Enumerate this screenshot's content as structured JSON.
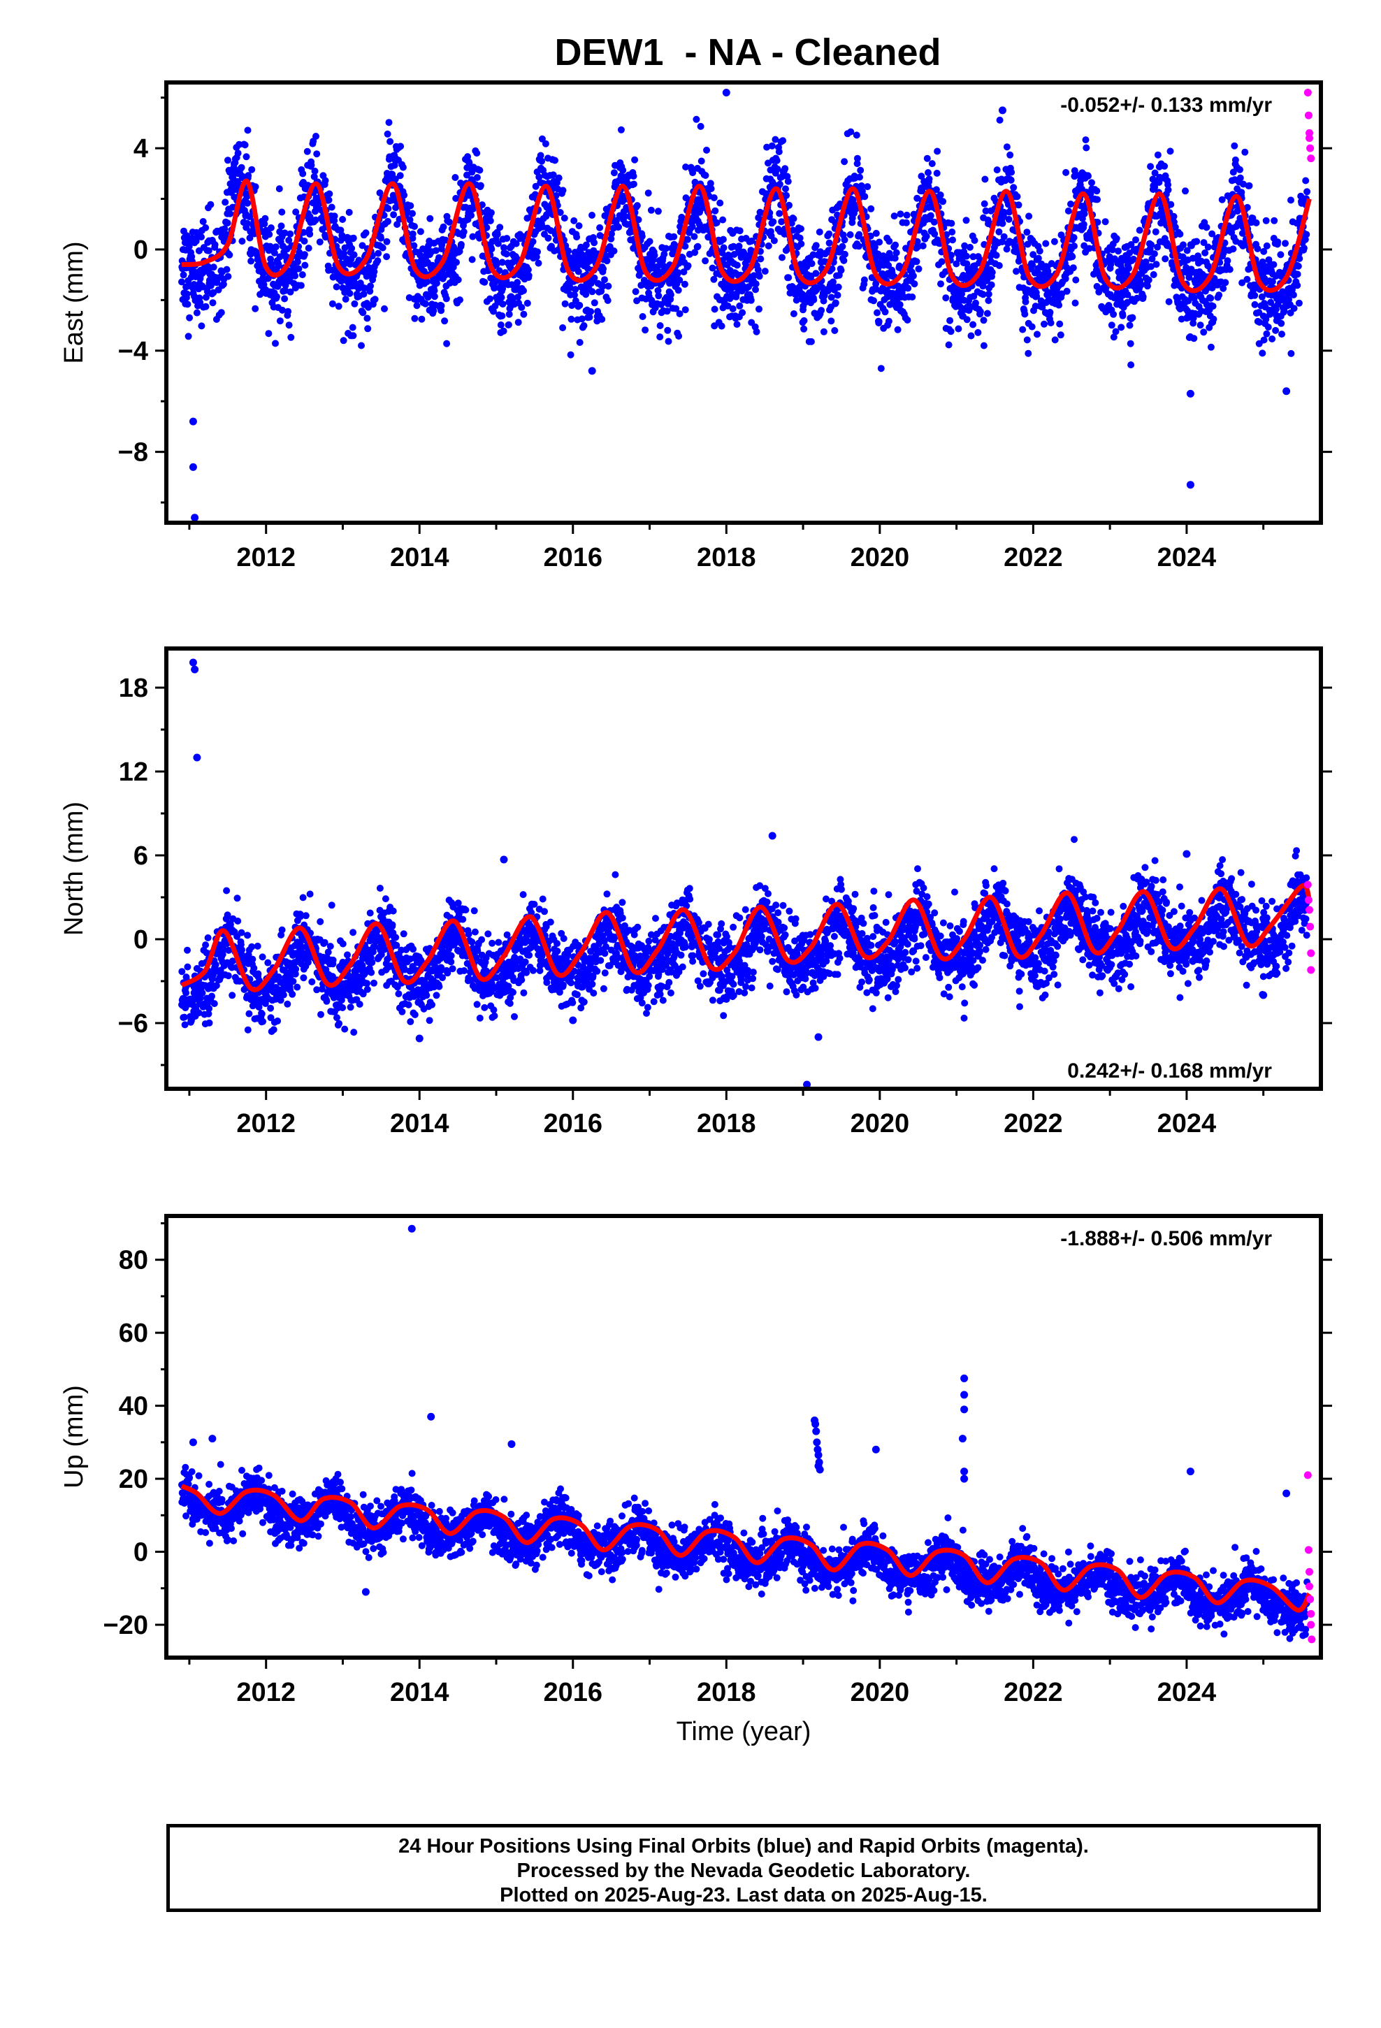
{
  "title": "DEW1  - NA - Cleaned",
  "footer": {
    "line1": "24 Hour Positions Using Final Orbits (blue) and Rapid Orbits (magenta).",
    "line2": "Processed by the Nevada Geodetic Laboratory.",
    "line3": "Plotted on 2025-Aug-23. Last data on 2025-Aug-15."
  },
  "colors": {
    "final": "#0000ff",
    "rapid": "#ff00ff",
    "model": "#ff0000",
    "frame": "#000000"
  },
  "chart_data": [
    {
      "type": "scatter",
      "component": "east",
      "ylabel": "East (mm)",
      "xlabel": "",
      "rate_label": "-0.052+/- 0.133 mm/yr",
      "xlim": [
        2010.7,
        2025.75
      ],
      "ylim": [
        -10.8,
        6.6
      ],
      "xticks": [
        2012,
        2014,
        2016,
        2018,
        2020,
        2022,
        2024
      ],
      "yticks": [
        -8,
        -4,
        0,
        4
      ],
      "ytick_labels": [
        "−8",
        "−4",
        "0",
        "4"
      ],
      "trend": {
        "value_at_2011": 0.35,
        "rate": -0.052
      },
      "seasonal": {
        "annual_amplitude": 1.7,
        "peak_phase": 0.65,
        "semiannual_amplitude": 0.6,
        "noise_sd": 1.0
      },
      "model_line": [
        [
          2010.9,
          -0.6
        ],
        [
          2011.2,
          -0.5
        ],
        [
          2011.5,
          0.2
        ],
        [
          2011.75,
          2.7
        ],
        [
          2012.0,
          -0.7
        ],
        [
          2012.3,
          -0.5
        ],
        [
          2012.65,
          2.6
        ],
        [
          2012.95,
          -0.7
        ],
        [
          2013.3,
          -0.4
        ],
        [
          2013.65,
          2.6
        ],
        [
          2013.95,
          -0.8
        ],
        [
          2014.3,
          -0.5
        ],
        [
          2014.65,
          2.6
        ],
        [
          2014.95,
          -0.8
        ],
        [
          2015.3,
          -0.6
        ],
        [
          2015.65,
          2.5
        ],
        [
          2015.95,
          -0.9
        ],
        [
          2016.3,
          -0.7
        ],
        [
          2016.65,
          2.5
        ],
        [
          2016.95,
          -0.9
        ],
        [
          2017.3,
          -0.7
        ],
        [
          2017.65,
          2.5
        ],
        [
          2017.95,
          -0.9
        ],
        [
          2018.3,
          -0.8
        ],
        [
          2018.65,
          2.4
        ],
        [
          2018.95,
          -1.0
        ],
        [
          2019.3,
          -0.8
        ],
        [
          2019.65,
          2.4
        ],
        [
          2019.95,
          -1.0
        ],
        [
          2020.3,
          -0.9
        ],
        [
          2020.65,
          2.3
        ],
        [
          2020.95,
          -1.1
        ],
        [
          2021.3,
          -0.9
        ],
        [
          2021.65,
          2.3
        ],
        [
          2021.95,
          -1.1
        ],
        [
          2022.3,
          -1.0
        ],
        [
          2022.65,
          2.2
        ],
        [
          2022.95,
          -1.2
        ],
        [
          2023.3,
          -1.0
        ],
        [
          2023.65,
          2.2
        ],
        [
          2023.95,
          -1.3
        ],
        [
          2024.3,
          -1.1
        ],
        [
          2024.65,
          2.1
        ],
        [
          2024.95,
          -1.3
        ],
        [
          2025.3,
          -1.1
        ],
        [
          2025.6,
          2.0
        ]
      ],
      "outliers": [
        [
          2011.05,
          -6.8
        ],
        [
          2011.05,
          -8.6
        ],
        [
          2011.07,
          -10.6
        ],
        [
          2018.0,
          6.2
        ],
        [
          2024.05,
          -9.3
        ],
        [
          2024.05,
          -5.7
        ],
        [
          2025.3,
          -5.6
        ],
        [
          2021.6,
          5.5
        ],
        [
          2016.25,
          -4.8
        ]
      ],
      "rapid_points": [
        [
          2025.58,
          6.2
        ],
        [
          2025.59,
          5.3
        ],
        [
          2025.6,
          4.4
        ],
        [
          2025.6,
          4.6
        ],
        [
          2025.61,
          4.0
        ],
        [
          2025.62,
          3.6
        ]
      ]
    },
    {
      "type": "scatter",
      "component": "north",
      "ylabel": "North (mm)",
      "xlabel": "",
      "rate_label": "0.242+/- 0.168 mm/yr",
      "xlim": [
        2010.7,
        2025.75
      ],
      "ylim": [
        -10.7,
        20.8
      ],
      "xticks": [
        2012,
        2014,
        2016,
        2018,
        2020,
        2022,
        2024
      ],
      "yticks": [
        -6,
        0,
        6,
        12,
        18
      ],
      "ytick_labels": [
        "−6",
        "0",
        "6",
        "12",
        "18"
      ],
      "trend": {
        "value_at_2011": -2.5,
        "rate": 0.242
      },
      "seasonal": {
        "annual_amplitude": 1.6,
        "peak_phase": 0.5,
        "semiannual_amplitude": 0.4,
        "noise_sd": 1.3
      },
      "model_line": [
        [
          2010.9,
          -3.3
        ],
        [
          2011.2,
          -2.3
        ],
        [
          2011.45,
          0.6
        ],
        [
          2011.8,
          -3.5
        ],
        [
          2012.1,
          -2.2
        ],
        [
          2012.45,
          0.8
        ],
        [
          2012.8,
          -3.2
        ],
        [
          2013.1,
          -1.8
        ],
        [
          2013.45,
          1.1
        ],
        [
          2013.8,
          -3.0
        ],
        [
          2014.1,
          -1.6
        ],
        [
          2014.45,
          1.3
        ],
        [
          2014.8,
          -2.8
        ],
        [
          2015.1,
          -1.2
        ],
        [
          2015.45,
          1.6
        ],
        [
          2015.8,
          -2.5
        ],
        [
          2016.1,
          -1.0
        ],
        [
          2016.45,
          1.9
        ],
        [
          2016.8,
          -2.3
        ],
        [
          2017.1,
          -0.8
        ],
        [
          2017.45,
          2.1
        ],
        [
          2017.8,
          -2.0
        ],
        [
          2018.1,
          -1.0
        ],
        [
          2018.45,
          2.3
        ],
        [
          2018.8,
          -1.5
        ],
        [
          2019.1,
          -0.6
        ],
        [
          2019.45,
          2.5
        ],
        [
          2019.8,
          -1.2
        ],
        [
          2020.1,
          -0.2
        ],
        [
          2020.45,
          2.8
        ],
        [
          2020.8,
          -1.3
        ],
        [
          2021.1,
          0.0
        ],
        [
          2021.45,
          3.0
        ],
        [
          2021.8,
          -1.2
        ],
        [
          2022.1,
          0.3
        ],
        [
          2022.45,
          3.3
        ],
        [
          2022.8,
          -0.9
        ],
        [
          2023.1,
          0.6
        ],
        [
          2023.45,
          3.4
        ],
        [
          2023.8,
          -0.6
        ],
        [
          2024.1,
          0.8
        ],
        [
          2024.45,
          3.6
        ],
        [
          2024.8,
          -0.4
        ],
        [
          2025.1,
          1.0
        ],
        [
          2025.5,
          3.8
        ],
        [
          2025.6,
          2.8
        ]
      ],
      "outliers": [
        [
          2011.05,
          19.8
        ],
        [
          2011.07,
          19.3
        ],
        [
          2011.1,
          13.0
        ],
        [
          2019.05,
          -10.4
        ],
        [
          2019.2,
          -7.0
        ],
        [
          2014.0,
          -7.1
        ],
        [
          2016.0,
          -5.8
        ],
        [
          2018.6,
          7.4
        ],
        [
          2024.0,
          6.1
        ],
        [
          2015.1,
          5.7
        ],
        [
          2025.0,
          -4.0
        ]
      ],
      "rapid_points": [
        [
          2025.58,
          3.9
        ],
        [
          2025.59,
          2.8
        ],
        [
          2025.6,
          2.1
        ],
        [
          2025.61,
          0.9
        ],
        [
          2025.62,
          -1.0
        ],
        [
          2025.62,
          -2.2
        ]
      ]
    },
    {
      "type": "scatter",
      "component": "up",
      "ylabel": "Up (mm)",
      "xlabel": "Time (year)",
      "rate_label": "-1.888+/- 0.506 mm/yr",
      "xlim": [
        2010.7,
        2025.75
      ],
      "ylim": [
        -29.0,
        92.0
      ],
      "xticks": [
        2012,
        2014,
        2016,
        2018,
        2020,
        2022,
        2024
      ],
      "yticks": [
        -20,
        0,
        20,
        40,
        60,
        80
      ],
      "ytick_labels": [
        "−20",
        "0",
        "20",
        "40",
        "60",
        "80"
      ],
      "trend": {
        "value_at_2011": 13.5,
        "rate": -1.888
      },
      "seasonal": {
        "annual_amplitude": 3.5,
        "peak_phase": 0.85,
        "semiannual_amplitude": 1.0,
        "noise_sd": 3.2
      },
      "model_line": [
        [
          2010.9,
          18.0
        ],
        [
          2011.1,
          16.0
        ],
        [
          2011.4,
          10.5
        ],
        [
          2011.75,
          16.5
        ],
        [
          2012.1,
          15.5
        ],
        [
          2012.45,
          8.5
        ],
        [
          2012.75,
          14.5
        ],
        [
          2013.1,
          13.5
        ],
        [
          2013.4,
          6.5
        ],
        [
          2013.75,
          12.5
        ],
        [
          2014.1,
          11.5
        ],
        [
          2014.4,
          5.0
        ],
        [
          2014.75,
          11.0
        ],
        [
          2015.1,
          9.5
        ],
        [
          2015.4,
          2.5
        ],
        [
          2015.75,
          9.0
        ],
        [
          2016.1,
          7.5
        ],
        [
          2016.4,
          0.5
        ],
        [
          2016.75,
          7.0
        ],
        [
          2017.1,
          6.0
        ],
        [
          2017.4,
          -1.0
        ],
        [
          2017.75,
          5.5
        ],
        [
          2018.1,
          4.0
        ],
        [
          2018.4,
          -3.0
        ],
        [
          2018.75,
          3.5
        ],
        [
          2019.1,
          2.0
        ],
        [
          2019.4,
          -5.0
        ],
        [
          2019.75,
          2.0
        ],
        [
          2020.1,
          0.5
        ],
        [
          2020.4,
          -6.5
        ],
        [
          2020.75,
          0.0
        ],
        [
          2021.1,
          -1.0
        ],
        [
          2021.4,
          -8.5
        ],
        [
          2021.75,
          -2.0
        ],
        [
          2022.1,
          -3.0
        ],
        [
          2022.4,
          -10.5
        ],
        [
          2022.75,
          -4.0
        ],
        [
          2023.1,
          -5.0
        ],
        [
          2023.4,
          -12.5
        ],
        [
          2023.75,
          -6.0
        ],
        [
          2024.1,
          -7.0
        ],
        [
          2024.4,
          -14.0
        ],
        [
          2024.75,
          -8.0
        ],
        [
          2025.1,
          -9.5
        ],
        [
          2025.45,
          -16.0
        ],
        [
          2025.6,
          -11.5
        ]
      ],
      "outliers": [
        [
          2013.9,
          88.5
        ],
        [
          2014.15,
          37.0
        ],
        [
          2019.15,
          36.0
        ],
        [
          2019.17,
          33.0
        ],
        [
          2019.18,
          30.0
        ],
        [
          2019.19,
          28.0
        ],
        [
          2019.2,
          26.5
        ],
        [
          2019.21,
          24.5
        ],
        [
          2019.2,
          23.5
        ],
        [
          2019.16,
          35.0
        ],
        [
          2019.22,
          22.5
        ],
        [
          2019.95,
          28.0
        ],
        [
          2021.1,
          47.5
        ],
        [
          2021.1,
          43.0
        ],
        [
          2021.1,
          39.0
        ],
        [
          2021.08,
          31.0
        ],
        [
          2021.1,
          22.0
        ],
        [
          2021.1,
          20.0
        ],
        [
          2024.05,
          22.0
        ],
        [
          2025.3,
          16.0
        ],
        [
          2011.3,
          31.0
        ],
        [
          2011.05,
          30.0
        ],
        [
          2015.2,
          29.5
        ],
        [
          2013.3,
          -11.0
        ]
      ],
      "rapid_points": [
        [
          2025.58,
          21.0
        ],
        [
          2025.59,
          0.5
        ],
        [
          2025.6,
          -5.5
        ],
        [
          2025.6,
          -9.5
        ],
        [
          2025.61,
          -13.0
        ],
        [
          2025.62,
          -17.0
        ],
        [
          2025.62,
          -20.0
        ],
        [
          2025.63,
          -24.0
        ]
      ]
    }
  ]
}
